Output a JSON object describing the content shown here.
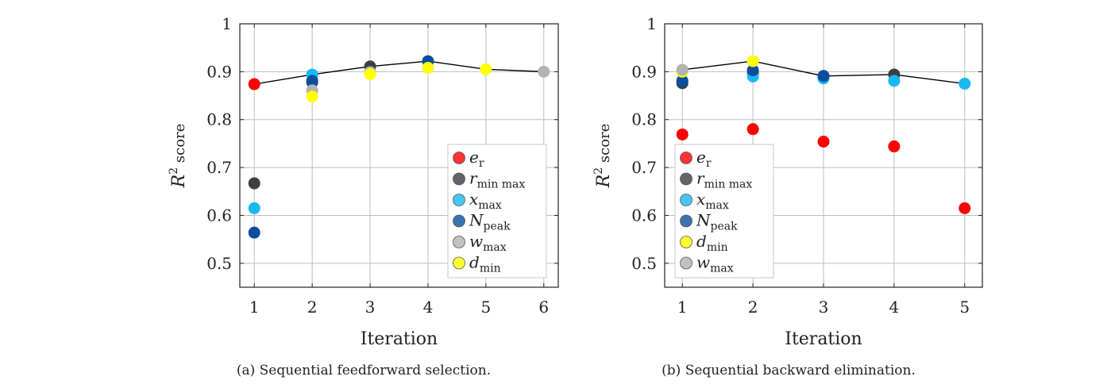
{
  "colors": {
    "e_r": "#ff0000",
    "r_minmax": "#3a3f45",
    "x_max": "#1ab8f0",
    "N_peak": "#0b4f9c",
    "w_max": "#b3b3b3",
    "d_min": "#ffff00",
    "line": "#000000",
    "grid": "#bdbdbd"
  },
  "chart_data": [
    {
      "type": "scatter",
      "caption": "(a) Sequential feedforward selection.",
      "xlabel": "Iteration",
      "ylabel": "R2 score",
      "ylabel_main": "R",
      "ylabel_sup": "2",
      "ylabel_rest": " score",
      "xlim": [
        0.75,
        6.25
      ],
      "ylim": [
        0.45,
        1.0
      ],
      "xticks": [
        1,
        2,
        3,
        4,
        5,
        6
      ],
      "yticks": [
        0.5,
        0.6,
        0.7,
        0.8,
        0.9,
        1
      ],
      "ytick_labels": [
        "0.5",
        "0.6",
        "0.7",
        "0.8",
        "0.9",
        "1"
      ],
      "grid": true,
      "legend_position": "bottom-right",
      "best_line": {
        "x": [
          1,
          2,
          3,
          4,
          5,
          6
        ],
        "y": [
          0.874,
          0.894,
          0.911,
          0.922,
          0.905,
          0.9
        ]
      },
      "series": [
        {
          "name": "e_r",
          "legend_main": "e",
          "legend_sub": "r",
          "color_key": "e_r",
          "x": [
            1
          ],
          "y": [
            0.874
          ]
        },
        {
          "name": "r_min max",
          "legend_main": "r",
          "legend_sub": "min max",
          "color_key": "r_minmax",
          "x": [
            1,
            2,
            3
          ],
          "y": [
            0.667,
            0.878,
            0.911
          ]
        },
        {
          "name": "x_max",
          "legend_main": "x",
          "legend_sub": "max",
          "color_key": "x_max",
          "x": [
            1,
            2
          ],
          "y": [
            0.615,
            0.894
          ]
        },
        {
          "name": "N_peak",
          "legend_main": "N",
          "legend_sub": "peak",
          "color_key": "N_peak",
          "x": [
            1,
            2,
            4
          ],
          "y": [
            0.564,
            0.881,
            0.922
          ]
        },
        {
          "name": "w_max",
          "legend_main": "w",
          "legend_sub": "max",
          "color_key": "w_max",
          "x": [
            2,
            3,
            6
          ],
          "y": [
            0.861,
            0.899,
            0.9
          ]
        },
        {
          "name": "d_min",
          "legend_main": "d",
          "legend_sub": "min",
          "color_key": "d_min",
          "x": [
            2,
            3,
            4,
            5
          ],
          "y": [
            0.848,
            0.895,
            0.908,
            0.905
          ]
        }
      ]
    },
    {
      "type": "scatter",
      "caption": "(b) Sequential backward elimination.",
      "xlabel": "Iteration",
      "ylabel": "R2 score",
      "ylabel_main": "R",
      "ylabel_sup": "2",
      "ylabel_rest": " score",
      "xlim": [
        0.75,
        5.25
      ],
      "ylim": [
        0.45,
        1.0
      ],
      "xticks": [
        1,
        2,
        3,
        4,
        5
      ],
      "yticks": [
        0.5,
        0.6,
        0.7,
        0.8,
        0.9,
        1
      ],
      "ytick_labels": [
        "0.5",
        "0.6",
        "0.7",
        "0.8",
        "0.9",
        "1"
      ],
      "grid": true,
      "legend_position": "bottom-left",
      "best_line": {
        "x": [
          1,
          2,
          3,
          4,
          5
        ],
        "y": [
          0.904,
          0.922,
          0.891,
          0.894,
          0.875
        ]
      },
      "series": [
        {
          "name": "e_r",
          "legend_main": "e",
          "legend_sub": "r",
          "color_key": "e_r",
          "x": [
            1,
            2,
            3,
            4,
            5
          ],
          "y": [
            0.769,
            0.78,
            0.754,
            0.744,
            0.615
          ]
        },
        {
          "name": "r_min max",
          "legend_main": "r",
          "legend_sub": "min max",
          "color_key": "r_minmax",
          "x": [
            1,
            2,
            3,
            4
          ],
          "y": [
            0.876,
            0.897,
            0.891,
            0.894
          ]
        },
        {
          "name": "x_max",
          "legend_main": "x",
          "legend_sub": "max",
          "color_key": "x_max",
          "x": [
            1,
            2,
            3,
            4,
            5
          ],
          "y": [
            0.882,
            0.89,
            0.886,
            0.881,
            0.875
          ]
        },
        {
          "name": "N_peak",
          "legend_main": "N",
          "legend_sub": "peak",
          "color_key": "N_peak",
          "x": [
            1,
            2,
            3
          ],
          "y": [
            0.88,
            0.903,
            0.891
          ]
        },
        {
          "name": "d_min",
          "legend_main": "d",
          "legend_sub": "min",
          "color_key": "d_min",
          "x": [
            1,
            2
          ],
          "y": [
            0.9,
            0.922
          ]
        },
        {
          "name": "w_max",
          "legend_main": "w",
          "legend_sub": "max",
          "color_key": "w_max",
          "x": [
            1
          ],
          "y": [
            0.904
          ]
        }
      ]
    }
  ]
}
